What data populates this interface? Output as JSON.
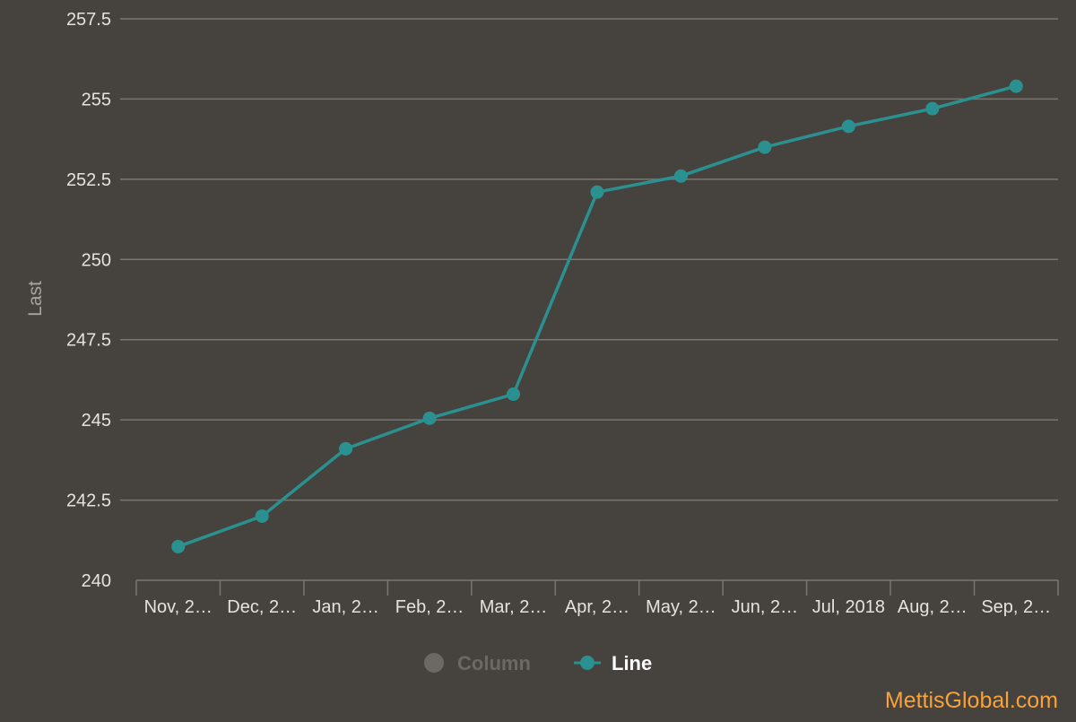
{
  "colors": {
    "background": "#46423e",
    "grid": "#7a7672",
    "axis_text": "#e6e2de",
    "axis_title": "#a8a4a0",
    "line": "#2b9090",
    "column_legend_inactive": "#6c6864",
    "legend_active_text": "#ffffff",
    "watermark": "#f7a23a"
  },
  "chart_data": {
    "type": "line",
    "title": "",
    "xlabel": "",
    "ylabel": "Last",
    "ylim": [
      240,
      257.5
    ],
    "yticks": [
      "240",
      "242.5",
      "245",
      "247.5",
      "250",
      "252.5",
      "255",
      "257.5"
    ],
    "categories": [
      "Nov, 2…",
      "Dec, 2…",
      "Jan, 2…",
      "Feb, 2…",
      "Mar, 2…",
      "Apr, 2…",
      "May, 2…",
      "Jun, 2…",
      "Jul, 2018",
      "Aug, 2…",
      "Sep, 2…"
    ],
    "series": [
      {
        "name": "Line",
        "values": [
          241.05,
          242.0,
          244.1,
          245.05,
          245.8,
          252.1,
          252.6,
          253.5,
          254.15,
          254.7,
          255.4
        ]
      }
    ],
    "grid": true,
    "legend": {
      "placement": "bottom-center",
      "items": [
        {
          "label": "Column",
          "active": false
        },
        {
          "label": "Line",
          "active": true
        }
      ]
    }
  },
  "watermark": "MettisGlobal.com"
}
